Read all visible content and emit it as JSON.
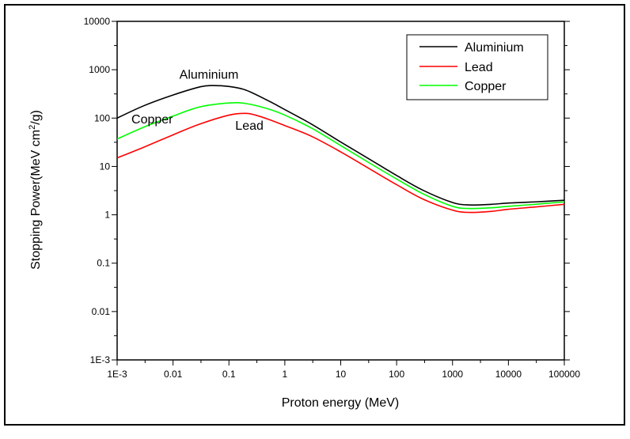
{
  "chart_data": {
    "type": "line",
    "xscale": "log",
    "yscale": "log",
    "xlabel": "Proton energy (MeV)",
    "ylabel": "Stopping Power(MeV cm",
    "ylabel_sup": "2",
    "ylabel_tail": "/g)",
    "xlim": [
      0.001,
      100000
    ],
    "ylim": [
      0.001,
      10000
    ],
    "x_ticks": [
      {
        "value": 0.001,
        "label": "1E-3"
      },
      {
        "value": 0.01,
        "label": "0.01"
      },
      {
        "value": 0.1,
        "label": "0.1"
      },
      {
        "value": 1,
        "label": "1"
      },
      {
        "value": 10,
        "label": "10"
      },
      {
        "value": 100,
        "label": "100"
      },
      {
        "value": 1000,
        "label": "1000"
      },
      {
        "value": 10000,
        "label": "10000"
      },
      {
        "value": 100000,
        "label": "100000"
      }
    ],
    "y_ticks": [
      {
        "value": 0.001,
        "label": "1E-3"
      },
      {
        "value": 0.01,
        "label": "0.01"
      },
      {
        "value": 0.1,
        "label": "0.1"
      },
      {
        "value": 1,
        "label": "1"
      },
      {
        "value": 10,
        "label": "10"
      },
      {
        "value": 100,
        "label": "100"
      },
      {
        "value": 1000,
        "label": "1000"
      },
      {
        "value": 10000,
        "label": "10000"
      }
    ],
    "grid": false,
    "legend_position": "top-right",
    "series": [
      {
        "name": "Aluminium",
        "color": "#000000",
        "x": [
          0.001,
          0.003,
          0.01,
          0.03,
          0.05,
          0.1,
          0.2,
          0.5,
          1,
          3,
          10,
          30,
          100,
          300,
          1000,
          2000,
          5000,
          10000,
          30000,
          100000
        ],
        "y": [
          100,
          180,
          300,
          440,
          470,
          450,
          380,
          230,
          150,
          75,
          32,
          15,
          6.5,
          3.2,
          1.8,
          1.6,
          1.65,
          1.75,
          1.85,
          2.0
        ]
      },
      {
        "name": "Lead",
        "color": "#ff0000",
        "x": [
          0.001,
          0.003,
          0.01,
          0.03,
          0.1,
          0.2,
          0.3,
          0.5,
          1,
          3,
          10,
          30,
          100,
          300,
          1000,
          2000,
          5000,
          10000,
          30000,
          100000
        ],
        "y": [
          15,
          25,
          45,
          75,
          115,
          125,
          115,
          95,
          70,
          42,
          20,
          9.5,
          4.2,
          2.1,
          1.25,
          1.12,
          1.18,
          1.3,
          1.45,
          1.65
        ]
      },
      {
        "name": "Copper",
        "color": "#00ff00",
        "x": [
          0.001,
          0.003,
          0.01,
          0.03,
          0.1,
          0.2,
          0.5,
          1,
          3,
          10,
          30,
          100,
          300,
          1000,
          2000,
          5000,
          10000,
          30000,
          100000
        ],
        "y": [
          37,
          65,
          110,
          170,
          205,
          200,
          155,
          115,
          62,
          27,
          12.5,
          5.5,
          2.7,
          1.5,
          1.35,
          1.4,
          1.5,
          1.65,
          1.85
        ]
      }
    ],
    "annotations": [
      {
        "text": "Aluminium",
        "x": 0.013,
        "y": 650
      },
      {
        "text": "Copper",
        "x": 0.0018,
        "y": 78
      },
      {
        "text": "Lead",
        "x": 0.13,
        "y": 58
      }
    ]
  }
}
